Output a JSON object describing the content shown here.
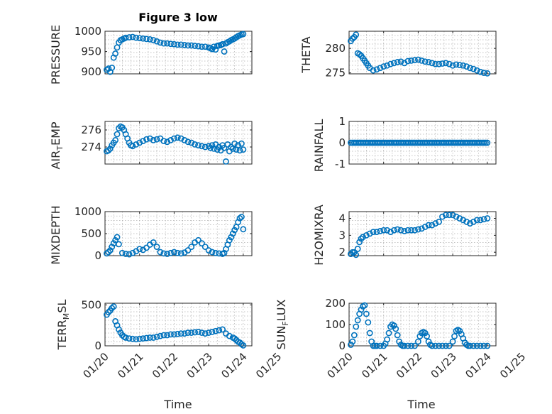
{
  "chart_data": [
    {
      "type": "scatter",
      "title": "Figure 3 low",
      "ylabel": "PRESSURE",
      "xlabel": "",
      "ylim": [
        895,
        1000
      ],
      "yticks": [
        "900",
        "950",
        "1000"
      ],
      "ytick_values": [
        900,
        950,
        1000
      ],
      "xlim": [
        0,
        4.25
      ],
      "x": [
        0.05,
        0.1,
        0.15,
        0.2,
        0.25,
        0.3,
        0.35,
        0.4,
        0.45,
        0.5,
        0.55,
        0.6,
        0.7,
        0.8,
        0.9,
        1.0,
        1.1,
        1.2,
        1.3,
        1.4,
        1.5,
        1.6,
        1.7,
        1.8,
        1.9,
        2.0,
        2.1,
        2.2,
        2.3,
        2.4,
        2.5,
        2.6,
        2.7,
        2.8,
        2.9,
        3.0,
        3.05,
        3.1,
        3.15,
        3.2,
        3.25,
        3.3,
        3.35,
        3.4,
        3.45,
        3.5,
        3.55,
        3.6,
        3.65,
        3.7,
        3.75,
        3.8,
        3.85,
        3.9,
        3.95,
        4.0
      ],
      "y": [
        905,
        908,
        900,
        910,
        935,
        945,
        960,
        972,
        978,
        980,
        982,
        984,
        985,
        986,
        984,
        983,
        982,
        981,
        980,
        978,
        975,
        972,
        970,
        970,
        969,
        968,
        967,
        967,
        966,
        965,
        965,
        964,
        963,
        962,
        962,
        960,
        958,
        956,
        962,
        955,
        964,
        965,
        966,
        968,
        950,
        970,
        973,
        975,
        978,
        980,
        982,
        985,
        988,
        990,
        992,
        993
      ]
    },
    {
      "type": "scatter",
      "title": "",
      "ylabel": "THETA",
      "xlabel": "",
      "ylim": [
        274.8,
        283.5
      ],
      "yticks": [
        "275",
        "280"
      ],
      "ytick_values": [
        275,
        280
      ],
      "xlim": [
        0,
        4.25
      ],
      "x": [
        0.05,
        0.1,
        0.15,
        0.2,
        0.25,
        0.3,
        0.35,
        0.4,
        0.45,
        0.5,
        0.55,
        0.6,
        0.7,
        0.8,
        0.9,
        1.0,
        1.1,
        1.2,
        1.3,
        1.4,
        1.5,
        1.6,
        1.7,
        1.8,
        1.9,
        2.0,
        2.1,
        2.2,
        2.3,
        2.4,
        2.5,
        2.6,
        2.7,
        2.8,
        2.9,
        3.0,
        3.1,
        3.2,
        3.3,
        3.4,
        3.5,
        3.6,
        3.7,
        3.8,
        3.9,
        4.0
      ],
      "y": [
        281.5,
        282,
        282.3,
        282.8,
        279,
        278.8,
        278.5,
        278,
        277.5,
        277,
        276.5,
        276,
        275.5,
        275.7,
        276,
        276.3,
        276.5,
        276.8,
        277,
        277.2,
        277.3,
        277,
        277.4,
        277.5,
        277.6,
        277.7,
        277.5,
        277.3,
        277.2,
        277,
        276.8,
        276.8,
        276.9,
        277,
        276.8,
        276.5,
        276.7,
        276.6,
        276.5,
        276.3,
        276,
        275.8,
        275.5,
        275.2,
        275,
        274.9
      ]
    },
    {
      "type": "scatter",
      "title": "",
      "ylabel": "AIR_TEMP",
      "xlabel": "",
      "ylim": [
        272.0,
        277.0
      ],
      "yticks": [
        "274",
        "276"
      ],
      "ytick_values": [
        274,
        276
      ],
      "xlim": [
        0,
        4.25
      ],
      "x": [
        0.05,
        0.1,
        0.15,
        0.2,
        0.25,
        0.3,
        0.35,
        0.4,
        0.45,
        0.5,
        0.55,
        0.6,
        0.65,
        0.7,
        0.75,
        0.8,
        0.9,
        1.0,
        1.1,
        1.2,
        1.3,
        1.4,
        1.5,
        1.6,
        1.7,
        1.8,
        1.9,
        2.0,
        2.1,
        2.2,
        2.3,
        2.4,
        2.5,
        2.6,
        2.7,
        2.8,
        2.9,
        3.0,
        3.05,
        3.1,
        3.15,
        3.2,
        3.25,
        3.3,
        3.35,
        3.4,
        3.45,
        3.5,
        3.55,
        3.6,
        3.65,
        3.7,
        3.75,
        3.8,
        3.85,
        3.9,
        3.95,
        4.0
      ],
      "y": [
        273.5,
        273.6,
        273.8,
        274.2,
        274.5,
        274.8,
        275.5,
        276.2,
        276.4,
        276.3,
        276.0,
        275.5,
        275.0,
        274.5,
        274.2,
        274.1,
        274.3,
        274.5,
        274.7,
        274.9,
        275.0,
        274.8,
        274.9,
        275.0,
        274.7,
        274.6,
        274.8,
        275.0,
        275.1,
        275.0,
        274.8,
        274.6,
        274.5,
        274.3,
        274.2,
        274.1,
        274.0,
        274.1,
        273.9,
        274.2,
        273.8,
        274.3,
        273.7,
        274.0,
        273.6,
        274.2,
        273.9,
        272.3,
        274.3,
        273.5,
        274.0,
        273.8,
        274.4,
        273.7,
        274.2,
        273.6,
        274.4,
        273.7
      ]
    },
    {
      "type": "scatter",
      "title": "",
      "ylabel": "RAINFALL",
      "xlabel": "",
      "ylim": [
        -1,
        1
      ],
      "yticks": [
        "-1",
        "0",
        "1"
      ],
      "ytick_values": [
        -1,
        0,
        1
      ],
      "xlim": [
        0,
        4.25
      ],
      "x_start": 0.05,
      "x_end": 4.0,
      "constant_value": 0,
      "point_count": 80
    },
    {
      "type": "scatter",
      "title": "",
      "ylabel": "MIXDEPTH",
      "xlabel": "",
      "ylim": [
        0,
        1000
      ],
      "yticks": [
        "0",
        "500",
        "1000"
      ],
      "ytick_values": [
        0,
        500,
        1000
      ],
      "xlim": [
        0,
        4.25
      ],
      "x": [
        0.05,
        0.1,
        0.15,
        0.2,
        0.25,
        0.3,
        0.35,
        0.4,
        0.5,
        0.6,
        0.7,
        0.8,
        0.9,
        1.0,
        1.1,
        1.2,
        1.3,
        1.4,
        1.5,
        1.6,
        1.7,
        1.8,
        1.9,
        2.0,
        2.1,
        2.2,
        2.3,
        2.4,
        2.5,
        2.6,
        2.7,
        2.8,
        2.9,
        3.0,
        3.1,
        3.2,
        3.3,
        3.4,
        3.45,
        3.5,
        3.55,
        3.6,
        3.65,
        3.7,
        3.75,
        3.8,
        3.85,
        3.9,
        3.95,
        4.0
      ],
      "y": [
        50,
        80,
        120,
        200,
        280,
        350,
        420,
        260,
        60,
        40,
        30,
        60,
        100,
        150,
        130,
        180,
        250,
        300,
        200,
        80,
        50,
        40,
        60,
        80,
        60,
        50,
        70,
        120,
        200,
        300,
        350,
        280,
        200,
        120,
        80,
        60,
        50,
        40,
        60,
        150,
        250,
        350,
        420,
        500,
        580,
        650,
        760,
        850,
        880,
        600
      ]
    },
    {
      "type": "scatter",
      "title": "",
      "ylabel": "H2OMIXRA",
      "xlabel": "",
      "ylim": [
        1.8,
        4.4
      ],
      "yticks": [
        "2",
        "3",
        "4"
      ],
      "ytick_values": [
        2,
        3,
        4
      ],
      "xlim": [
        0,
        4.25
      ],
      "x": [
        0.05,
        0.1,
        0.15,
        0.2,
        0.25,
        0.3,
        0.35,
        0.4,
        0.5,
        0.6,
        0.7,
        0.8,
        0.9,
        1.0,
        1.1,
        1.2,
        1.3,
        1.4,
        1.5,
        1.6,
        1.7,
        1.8,
        1.9,
        2.0,
        2.1,
        2.2,
        2.3,
        2.4,
        2.5,
        2.6,
        2.7,
        2.8,
        2.9,
        3.0,
        3.1,
        3.2,
        3.3,
        3.4,
        3.5,
        3.6,
        3.7,
        3.8,
        3.9,
        4.0
      ],
      "y": [
        1.9,
        2.0,
        2.0,
        1.85,
        2.2,
        2.6,
        2.8,
        2.9,
        3.0,
        3.1,
        3.2,
        3.2,
        3.25,
        3.3,
        3.3,
        3.2,
        3.3,
        3.35,
        3.3,
        3.25,
        3.3,
        3.3,
        3.3,
        3.35,
        3.4,
        3.5,
        3.6,
        3.6,
        3.7,
        3.8,
        4.1,
        4.2,
        4.2,
        4.2,
        4.1,
        4.0,
        3.9,
        3.8,
        3.7,
        3.8,
        3.9,
        3.9,
        3.95,
        4.0
      ]
    },
    {
      "type": "scatter",
      "title": "",
      "ylabel": "TERR_MSL",
      "xlabel": "Time",
      "ylim": [
        0,
        520
      ],
      "yticks": [
        "0",
        "500"
      ],
      "ytick_values": [
        0,
        500
      ],
      "xlim": [
        0,
        4.25
      ],
      "xticks": [
        "01/20",
        "01/21",
        "01/22",
        "01/23",
        "01/24",
        "01/25"
      ],
      "xtick_values": [
        0,
        1,
        2,
        3,
        4,
        5
      ],
      "x": [
        0.05,
        0.1,
        0.15,
        0.2,
        0.25,
        0.3,
        0.35,
        0.4,
        0.45,
        0.5,
        0.55,
        0.6,
        0.7,
        0.8,
        0.9,
        1.0,
        1.1,
        1.2,
        1.3,
        1.4,
        1.5,
        1.6,
        1.7,
        1.8,
        1.9,
        2.0,
        2.1,
        2.2,
        2.3,
        2.4,
        2.5,
        2.6,
        2.7,
        2.8,
        2.9,
        3.0,
        3.1,
        3.2,
        3.3,
        3.4,
        3.5,
        3.6,
        3.7,
        3.75,
        3.8,
        3.85,
        3.9,
        3.95,
        4.0
      ],
      "y": [
        380,
        410,
        430,
        460,
        480,
        300,
        250,
        200,
        160,
        130,
        110,
        100,
        90,
        85,
        80,
        85,
        90,
        95,
        100,
        100,
        110,
        120,
        130,
        130,
        140,
        140,
        145,
        150,
        150,
        160,
        160,
        165,
        170,
        160,
        150,
        160,
        170,
        180,
        190,
        200,
        150,
        120,
        100,
        90,
        70,
        50,
        40,
        20,
        5
      ]
    },
    {
      "type": "scatter",
      "title": "",
      "ylabel": "SUN_FLUX",
      "xlabel": "Time",
      "ylim": [
        0,
        200
      ],
      "yticks": [
        "0",
        "100",
        "200"
      ],
      "ytick_values": [
        0,
        100,
        200
      ],
      "xlim": [
        0,
        4.25
      ],
      "xticks": [
        "01/20",
        "01/21",
        "01/22",
        "01/23",
        "01/24",
        "01/25"
      ],
      "xtick_values": [
        0,
        1,
        2,
        3,
        4,
        5
      ],
      "x": [
        0.05,
        0.1,
        0.15,
        0.2,
        0.25,
        0.3,
        0.35,
        0.4,
        0.45,
        0.5,
        0.55,
        0.6,
        0.65,
        0.7,
        0.75,
        0.8,
        0.9,
        1.0,
        1.05,
        1.1,
        1.15,
        1.2,
        1.25,
        1.3,
        1.35,
        1.4,
        1.45,
        1.5,
        1.55,
        1.6,
        1.7,
        1.8,
        1.9,
        2.0,
        2.05,
        2.1,
        2.15,
        2.2,
        2.25,
        2.3,
        2.35,
        2.4,
        2.5,
        2.6,
        2.7,
        2.8,
        2.9,
        3.0,
        3.05,
        3.1,
        3.15,
        3.2,
        3.25,
        3.3,
        3.35,
        3.4,
        3.45,
        3.5,
        3.6,
        3.7,
        3.8,
        3.9,
        4.0
      ],
      "y": [
        5,
        20,
        50,
        90,
        120,
        150,
        170,
        185,
        190,
        150,
        110,
        60,
        20,
        0,
        0,
        0,
        0,
        0,
        10,
        30,
        60,
        90,
        100,
        95,
        80,
        50,
        20,
        5,
        0,
        0,
        0,
        0,
        0,
        20,
        45,
        60,
        65,
        60,
        45,
        20,
        5,
        0,
        0,
        0,
        0,
        0,
        0,
        20,
        45,
        70,
        75,
        70,
        55,
        35,
        15,
        5,
        0,
        0,
        0,
        0,
        0,
        0,
        0
      ]
    }
  ]
}
